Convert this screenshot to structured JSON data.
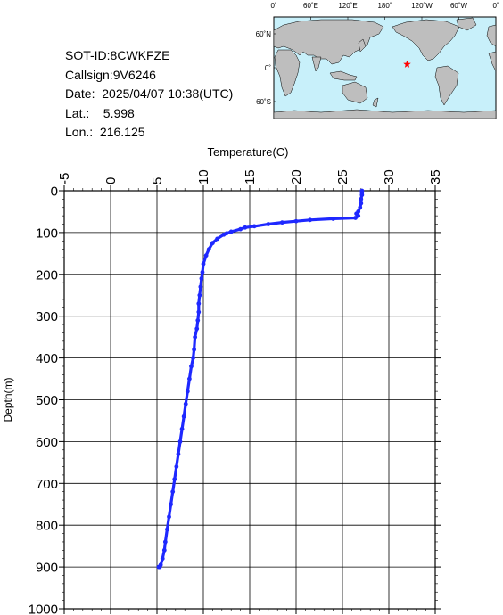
{
  "info": {
    "sot_id": "SOT-ID:8CWKFZE",
    "callsign": "Callsign:9V6246",
    "date": "Date:  2025/04/07 10:38(UTC)",
    "lat": "Lat.:    5.998",
    "lon": "Lon.:  216.125"
  },
  "map": {
    "top_labels": [
      "0˚",
      "60˚E",
      "120˚E",
      "180˚",
      "120˚W",
      "60˚W",
      "0˚"
    ],
    "side_labels": [
      "60˚N",
      "0˚",
      "60˚S"
    ],
    "ocean_color": "#c8f0fa",
    "land_color": "#bebebe",
    "marker_color": "#ff0000",
    "marker_lon": 216.125,
    "marker_lat": 5.998
  },
  "chart_data": {
    "type": "line",
    "title": "",
    "xlabel": "Temperature(C)",
    "ylabel": "Depth(m)",
    "xlim": [
      -5,
      35
    ],
    "ylim": [
      1000,
      0
    ],
    "x_ticks": [
      "-5",
      "0",
      "5",
      "10",
      "15",
      "20",
      "25",
      "30",
      "35"
    ],
    "y_ticks": [
      "0",
      "100",
      "200",
      "300",
      "400",
      "500",
      "600",
      "700",
      "800",
      "900",
      "1000"
    ],
    "x_tick_positions": [
      -5,
      0,
      5,
      10,
      15,
      20,
      25,
      30,
      35
    ],
    "y_tick_positions": [
      0,
      100,
      200,
      300,
      400,
      500,
      600,
      700,
      800,
      900,
      1000
    ],
    "grid": true,
    "series_color": "#1e28ff",
    "series": [
      {
        "name": "",
        "temperature": [
          27.1,
          27.1,
          27.1,
          27.0,
          27.0,
          26.9,
          26.7,
          26.5,
          26.7,
          26.4,
          24.0,
          21.5,
          20.0,
          18.5,
          17.0,
          15.5,
          14.5,
          14.0,
          13.0,
          12.5,
          12.2,
          11.5,
          11.0,
          10.6,
          10.3,
          10.0,
          9.9,
          9.8,
          9.7,
          9.6,
          9.5,
          9.5,
          9.4,
          9.3,
          9.1,
          9.0,
          8.9,
          8.7,
          8.5,
          8.3,
          8.1,
          7.9,
          7.7,
          7.5,
          7.3,
          7.1,
          6.9,
          6.7,
          6.5,
          6.3,
          6.1,
          5.9,
          5.8,
          5.6,
          5.4,
          5.3,
          5.2,
          5.2
        ],
        "depth": [
          0,
          5,
          10,
          20,
          30,
          40,
          50,
          55,
          60,
          65,
          67,
          70,
          73,
          76,
          80,
          85,
          88,
          92,
          98,
          102,
          105,
          115,
          125,
          140,
          155,
          175,
          195,
          210,
          230,
          250,
          270,
          290,
          310,
          330,
          350,
          380,
          400,
          420,
          450,
          480,
          510,
          540,
          570,
          600,
          630,
          660,
          690,
          720,
          750,
          780,
          810,
          840,
          860,
          880,
          895,
          900,
          900,
          900
        ]
      }
    ]
  }
}
